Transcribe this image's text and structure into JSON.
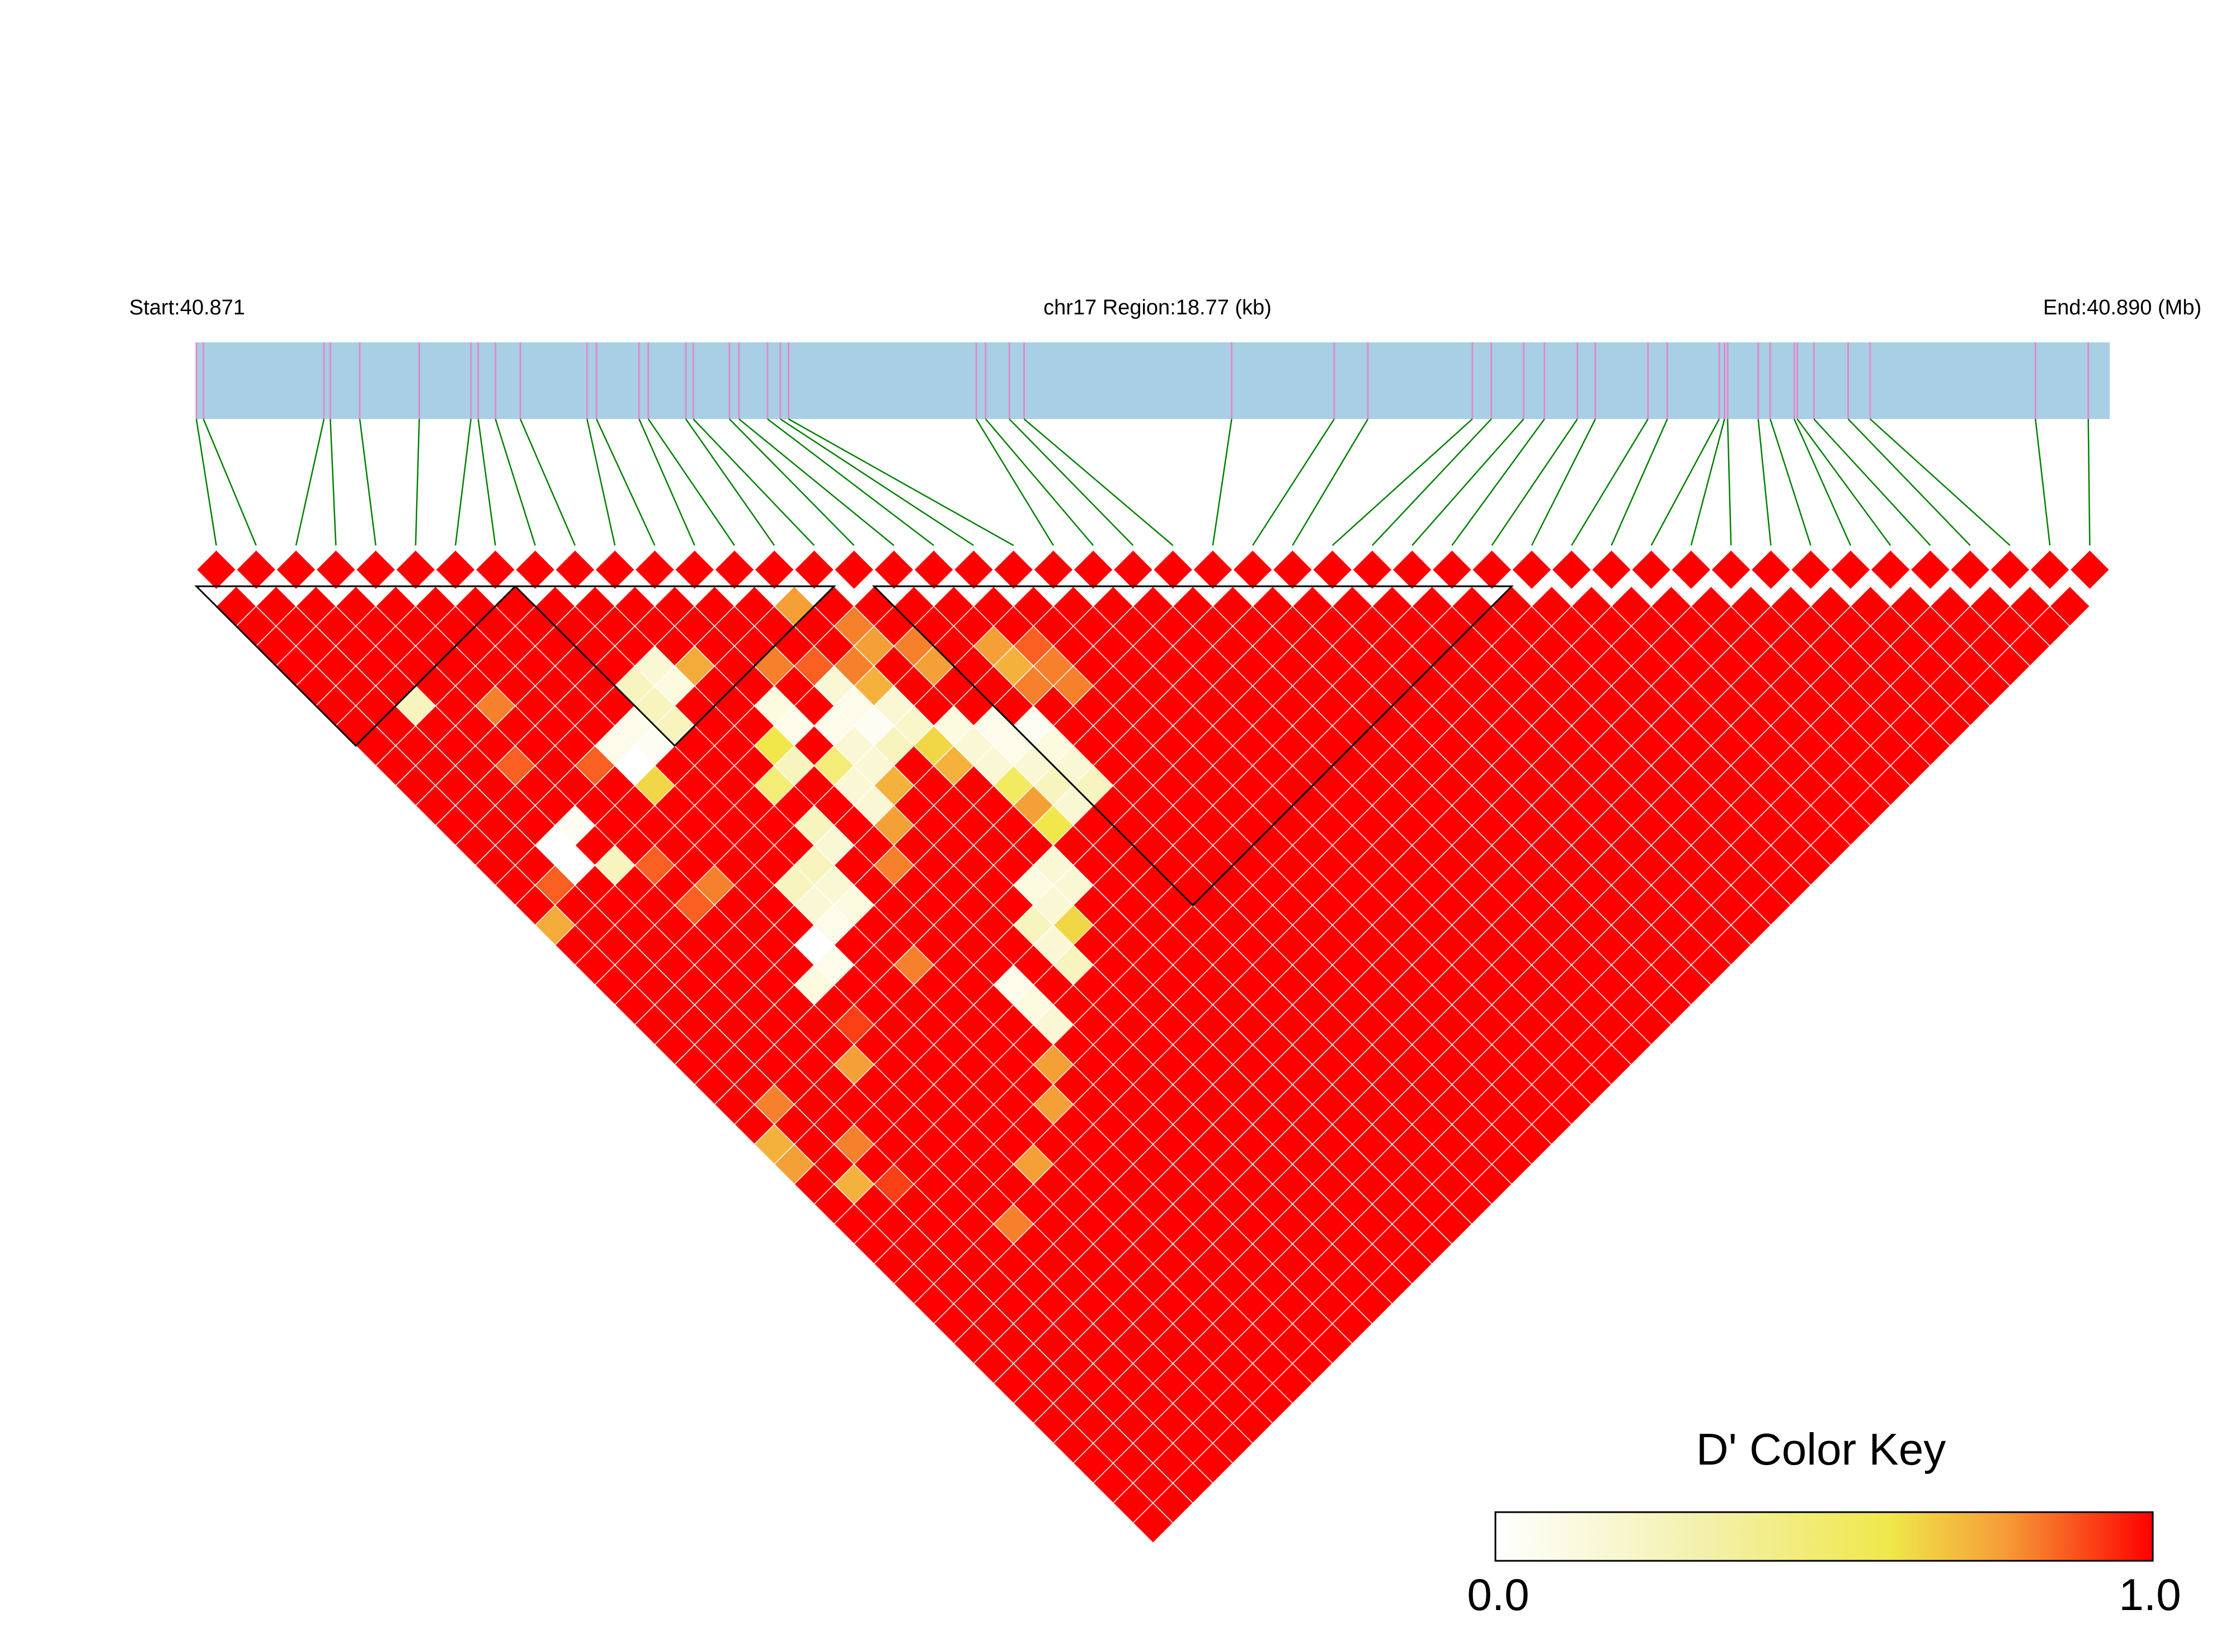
{
  "header": {
    "start_label": "Start:40.871",
    "region_label": "chr17 Region:18.77 (kb)",
    "end_label": "End:40.890 (Mb)"
  },
  "legend": {
    "title": "D' Color Key",
    "min_label": "0.0",
    "max_label": "1.0",
    "colors": [
      "#ffffff",
      "#f0e84a",
      "#ff0000"
    ]
  },
  "colors": {
    "track_fill": "#a8cfe3",
    "snp_tick": "#e08ad0",
    "connector": "#008000",
    "diamond": "#ff0000",
    "block_outline": "#000000"
  },
  "chart_data": {
    "type": "heatmap",
    "title": "",
    "region": "chr17",
    "start_mb": 40.871,
    "end_mb": 40.89,
    "region_kb": 18.77,
    "value_range": [
      0,
      1
    ],
    "snp_count": 48,
    "snp_positions_frac": [
      0,
      0.0037,
      0.0667,
      0.07,
      0.0854,
      0.1165,
      0.1435,
      0.1473,
      0.1563,
      0.1693,
      0.2042,
      0.2091,
      0.2314,
      0.2362,
      0.2558,
      0.2597,
      0.2786,
      0.2836,
      0.2985,
      0.3052,
      0.3095,
      0.4076,
      0.4125,
      0.4249,
      0.4326,
      0.5411,
      0.5947,
      0.6123,
      0.6669,
      0.6768,
      0.6937,
      0.7046,
      0.7218,
      0.7312,
      0.7587,
      0.7688,
      0.7959,
      0.7987,
      0.8003,
      0.8163,
      0.8226,
      0.8351,
      0.8367,
      0.8454,
      0.8633,
      0.8748,
      0.9612,
      0.9888
    ],
    "default_value": 1.0,
    "cells": [
      [
        0,
        17,
        0.72
      ],
      [
        0,
        28,
        0.7
      ],
      [
        0,
        29,
        0.75
      ],
      [
        1,
        16,
        0.85
      ],
      [
        1,
        27,
        0.8
      ],
      [
        1,
        31,
        0.7
      ],
      [
        2,
        8,
        0.3
      ],
      [
        2,
        15,
        0.0
      ],
      [
        2,
        16,
        0.0
      ],
      [
        2,
        30,
        0.8
      ],
      [
        2,
        32,
        0.9
      ],
      [
        3,
        12,
        0.85
      ],
      [
        3,
        15,
        0.05
      ],
      [
        3,
        17,
        0.3
      ],
      [
        4,
        10,
        0.8
      ],
      [
        4,
        18,
        0.85
      ],
      [
        4,
        20,
        0.85
      ],
      [
        4,
        28,
        0.75
      ],
      [
        4,
        36,
        0.8
      ],
      [
        5,
        14,
        0.85
      ],
      [
        5,
        20,
        0.8
      ],
      [
        5,
        25,
        0.15
      ],
      [
        5,
        27,
        0.9
      ],
      [
        6,
        14,
        0.1
      ],
      [
        6,
        15,
        0.0
      ],
      [
        6,
        16,
        0.6
      ],
      [
        6,
        24,
        0.0
      ],
      [
        6,
        25,
        0.1
      ],
      [
        6,
        35,
        0.75
      ],
      [
        7,
        14,
        0.1
      ],
      [
        7,
        15,
        0.05
      ],
      [
        7,
        22,
        0.3
      ],
      [
        7,
        23,
        0.2
      ],
      [
        7,
        24,
        0.1
      ],
      [
        8,
        13,
        0.3
      ],
      [
        8,
        14,
        0.3
      ],
      [
        8,
        15,
        0.3
      ],
      [
        8,
        22,
        0.3
      ],
      [
        8,
        23,
        0.2
      ],
      [
        8,
        24,
        0.15
      ],
      [
        8,
        27,
        0.8
      ],
      [
        8,
        34,
        0.75
      ],
      [
        9,
        13,
        0.2
      ],
      [
        9,
        14,
        0.15
      ],
      [
        9,
        19,
        0.45
      ],
      [
        9,
        21,
        0.3
      ],
      [
        9,
        22,
        0.2
      ],
      [
        9,
        33,
        0.75
      ],
      [
        10,
        14,
        0.72
      ],
      [
        10,
        18,
        0.55
      ],
      [
        10,
        19,
        0.3
      ],
      [
        10,
        24,
        0.8
      ],
      [
        10,
        30,
        0.1
      ],
      [
        10,
        31,
        0.15
      ],
      [
        10,
        32,
        0.2
      ],
      [
        11,
        17,
        0.15
      ],
      [
        11,
        18,
        0.1
      ],
      [
        11,
        20,
        0.45
      ],
      [
        11,
        21,
        0.2
      ],
      [
        11,
        22,
        0.2
      ],
      [
        11,
        23,
        0.75
      ],
      [
        12,
        16,
        0.8
      ],
      [
        12,
        19,
        0.1
      ],
      [
        12,
        20,
        0.2
      ],
      [
        12,
        21,
        0.2
      ],
      [
        12,
        22,
        0.7
      ],
      [
        12,
        29,
        0.3
      ],
      [
        12,
        30,
        0.2
      ],
      [
        12,
        31,
        0.3
      ],
      [
        13,
        17,
        0.85
      ],
      [
        13,
        18,
        0.2
      ],
      [
        13,
        19,
        0.1
      ],
      [
        13,
        20,
        0.05
      ],
      [
        13,
        21,
        0.3
      ],
      [
        13,
        28,
        0.15
      ],
      [
        13,
        29,
        0.2
      ],
      [
        13,
        30,
        0.6
      ],
      [
        14,
        15,
        0.75
      ],
      [
        14,
        18,
        0.8
      ],
      [
        14,
        19,
        0.7
      ],
      [
        14,
        20,
        0.2
      ],
      [
        14,
        21,
        0.25
      ],
      [
        14,
        22,
        0.6
      ],
      [
        14,
        23,
        0.7
      ],
      [
        14,
        28,
        0.2
      ],
      [
        14,
        29,
        0.2
      ],
      [
        15,
        17,
        0.8
      ],
      [
        15,
        18,
        0.75
      ],
      [
        15,
        22,
        0.15
      ],
      [
        15,
        23,
        0.2
      ],
      [
        15,
        24,
        0.2
      ],
      [
        15,
        25,
        0.5
      ],
      [
        15,
        26,
        0.75
      ],
      [
        15,
        27,
        0.55
      ],
      [
        16,
        19,
        0.8
      ],
      [
        16,
        20,
        0.75
      ],
      [
        16,
        23,
        0.1
      ],
      [
        16,
        24,
        0.1
      ],
      [
        16,
        25,
        0.2
      ],
      [
        16,
        26,
        0.3
      ],
      [
        16,
        27,
        0.2
      ],
      [
        17,
        24,
        0.05
      ],
      [
        17,
        25,
        0.15
      ],
      [
        17,
        26,
        0.2
      ],
      [
        17,
        27,
        0.3
      ],
      [
        18,
        21,
        0.75
      ],
      [
        18,
        22,
        0.7
      ],
      [
        18,
        23,
        0.8
      ],
      [
        19,
        22,
        0.85
      ],
      [
        19,
        23,
        0.8
      ],
      [
        19,
        24,
        0.8
      ]
    ],
    "blocks": [
      [
        0,
        7
      ],
      [
        8,
        15
      ],
      [
        17,
        32
      ]
    ]
  }
}
